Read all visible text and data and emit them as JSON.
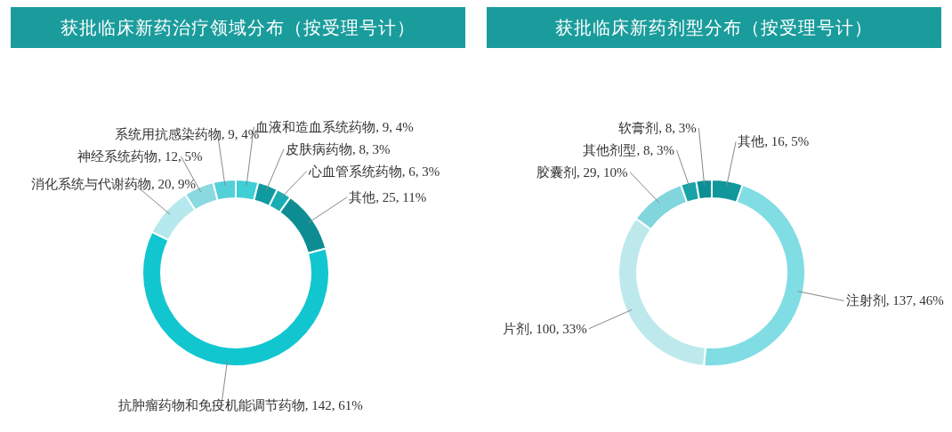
{
  "chart_data": [
    {
      "type": "donut",
      "title": "获批临床新药治疗领域分布（按受理号计）",
      "categories": [
        "血液和造血系统药物",
        "皮肤病药物",
        "心血管系统药物",
        "其他",
        "抗肿瘤药物和免疫机能调节药物",
        "消化系统与代谢药物",
        "神经系统药物",
        "系统用抗感染药物"
      ],
      "values": [
        9,
        8,
        6,
        25,
        142,
        20,
        12,
        9
      ],
      "value_labels": [
        "9, 4%",
        "8, 3%",
        "6, 3%",
        "25, 11%",
        "142, 61%",
        "20, 9%",
        "12, 5%",
        "9, 4%"
      ],
      "colors": [
        "#3fcfd6",
        "#0f9aa0",
        "#19aeb3",
        "#0d8d93",
        "#12c6d0",
        "#b5e9ed",
        "#8ad9df",
        "#53d0d8"
      ]
    },
    {
      "type": "donut",
      "title": "获批临床新药剂型分布（按受理号计）",
      "categories": [
        "其他",
        "注射剂",
        "片剂",
        "胶囊剂",
        "其他剂型",
        "软膏剂"
      ],
      "values": [
        16,
        137,
        100,
        29,
        8,
        8
      ],
      "value_labels": [
        "16, 5%",
        "137, 46%",
        "100, 33%",
        "29, 10%",
        "8, 3%",
        "8, 3%"
      ],
      "colors": [
        "#0f979c",
        "#80dde3",
        "#bde9ed",
        "#80d6dc",
        "#17a3a8",
        "#0b8f94"
      ]
    }
  ]
}
